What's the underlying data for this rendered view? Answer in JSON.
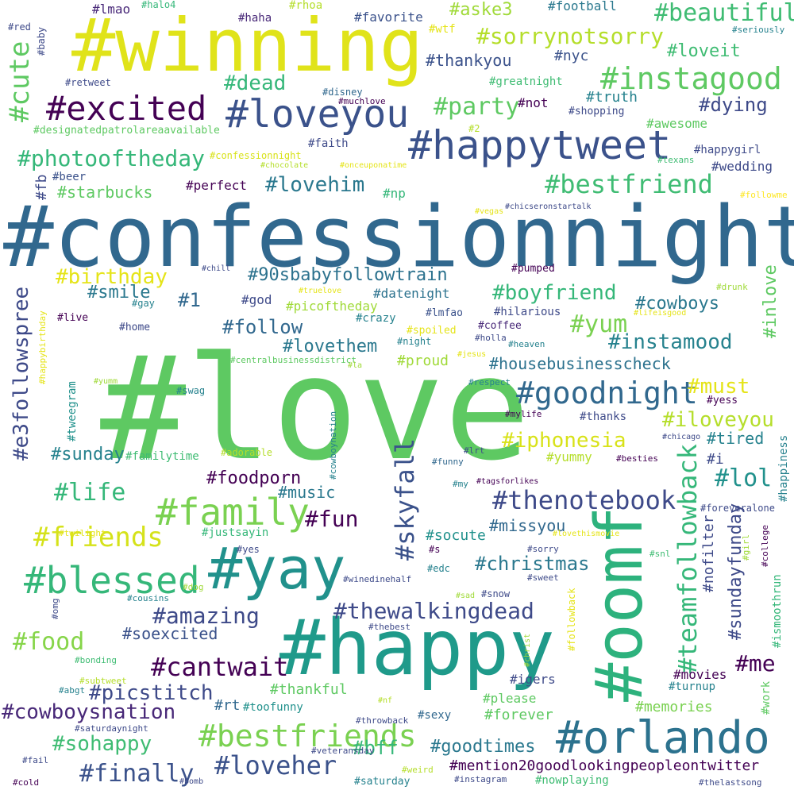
{
  "words": [
    {
      "text": "#confessionnight",
      "color": "#31688e"
    },
    {
      "text": "#love",
      "color": "#5ec962"
    },
    {
      "text": "#winning",
      "color": "#e0e31a"
    },
    {
      "text": "#happy",
      "color": "#1f9a8a"
    },
    {
      "text": "#oomf",
      "color": "#2db27d"
    },
    {
      "text": "#yay",
      "color": "#21918c"
    },
    {
      "text": "#happytweet",
      "color": "#3b528b"
    },
    {
      "text": "#loveyou",
      "color": "#3b528b"
    },
    {
      "text": "#orlando",
      "color": "#2c728e"
    },
    {
      "text": "#excited",
      "color": "#440154"
    },
    {
      "text": "#family",
      "color": "#7ad151"
    },
    {
      "text": "#blessed",
      "color": "#35b779"
    },
    {
      "text": "#instagood",
      "color": "#5ec962"
    },
    {
      "text": "#bestfriends",
      "color": "#7ad151"
    },
    {
      "text": "#goodnight",
      "color": "#31688e"
    },
    {
      "text": "#thenotebook",
      "color": "#3e4a89"
    },
    {
      "text": "#skyfall",
      "color": "#3b528b"
    },
    {
      "text": "#teamfollowback",
      "color": "#35b779"
    },
    {
      "text": "#beautiful",
      "color": "#3fbc73"
    },
    {
      "text": "#bestfriend",
      "color": "#3fbc73"
    },
    {
      "text": "#cute",
      "color": "#5ec962"
    },
    {
      "text": "#thewalkingdead",
      "color": "#3e4a89"
    },
    {
      "text": "#e3followspree",
      "color": "#3e4a89"
    },
    {
      "text": "#loveher",
      "color": "#3b528b"
    },
    {
      "text": "#friends",
      "color": "#d5e21a"
    },
    {
      "text": "#cantwait",
      "color": "#440154"
    },
    {
      "text": "#sorrynotsorry",
      "color": "#b5de2b"
    },
    {
      "text": "#photooftheday",
      "color": "#35b779"
    },
    {
      "text": "#party",
      "color": "#5ec962"
    },
    {
      "text": "#cowboysnation",
      "color": "#482878"
    },
    {
      "text": "#amazing",
      "color": "#3e4a89"
    },
    {
      "text": "#finally",
      "color": "#3b528b"
    },
    {
      "text": "#food",
      "color": "#86d549"
    },
    {
      "text": "#life",
      "color": "#35b779"
    },
    {
      "text": "#instamood",
      "color": "#26828e"
    },
    {
      "text": "#lol",
      "color": "#21918c"
    },
    {
      "text": "#boyfriend",
      "color": "#35b779"
    },
    {
      "text": "#birthday",
      "color": "#e5e419"
    },
    {
      "text": "#lovehim",
      "color": "#2a788e"
    },
    {
      "text": "#iphonesia",
      "color": "#d8e219"
    },
    {
      "text": "#iloveyou",
      "color": "#b5de2b"
    },
    {
      "text": "#90sbabyfollowtrain",
      "color": "#2c728e"
    },
    {
      "text": "#dead",
      "color": "#35b779"
    },
    {
      "text": "#christmas",
      "color": "#2a788e"
    },
    {
      "text": "#sundayfunday",
      "color": "#3e4a89"
    },
    {
      "text": "#picstitch",
      "color": "#3e4a89"
    },
    {
      "text": "#fun",
      "color": "#440154"
    },
    {
      "text": "#yum",
      "color": "#7ad151"
    },
    {
      "text": "#goodtimes",
      "color": "#2a788e"
    },
    {
      "text": "#sohappy",
      "color": "#3fbc73"
    },
    {
      "text": "#mention20goodlookingpeopleontwitter",
      "color": "#440154"
    },
    {
      "text": "#housebusinesscheck",
      "color": "#2c728e"
    },
    {
      "text": "#must",
      "color": "#e5e419"
    },
    {
      "text": "#follow",
      "color": "#31688e"
    },
    {
      "text": "#lovethem",
      "color": "#2a788e"
    },
    {
      "text": "#starbucks",
      "color": "#5ec962"
    },
    {
      "text": "#dying",
      "color": "#3e4a89"
    },
    {
      "text": "#soexcited",
      "color": "#3b528b"
    },
    {
      "text": "#bff",
      "color": "#35b779"
    },
    {
      "text": "#me",
      "color": "#440154"
    },
    {
      "text": "#inlove",
      "color": "#5ec962"
    },
    {
      "text": "#cowboys",
      "color": "#2a788e"
    },
    {
      "text": "#foodporn",
      "color": "#440154"
    },
    {
      "text": "#missyou",
      "color": "#31688e"
    },
    {
      "text": "#music",
      "color": "#2a788e"
    },
    {
      "text": "#sunday",
      "color": "#26828e"
    },
    {
      "text": "#smile",
      "color": "#2a788e"
    },
    {
      "text": "#aske3",
      "color": "#a0da39"
    },
    {
      "text": "#loveit",
      "color": "#3fbc73"
    },
    {
      "text": "#thankyou",
      "color": "#3b528b"
    },
    {
      "text": "#socute",
      "color": "#21918c"
    },
    {
      "text": "#forever",
      "color": "#5ec962"
    },
    {
      "text": "#tired",
      "color": "#26828e"
    },
    {
      "text": "#thankful",
      "color": "#5ec962"
    },
    {
      "text": "#1",
      "color": "#31688e"
    },
    {
      "text": "#memories",
      "color": "#7ad151"
    },
    {
      "text": "#nyc",
      "color": "#3b528b"
    },
    {
      "text": "#datenight",
      "color": "#2c728e"
    },
    {
      "text": "#proud",
      "color": "#a0da39"
    },
    {
      "text": "#truth",
      "color": "#26828e"
    },
    {
      "text": "#yummy",
      "color": "#b5de2b"
    },
    {
      "text": "#rt",
      "color": "#31688e"
    },
    {
      "text": "#fb",
      "color": "#3e4a89"
    },
    {
      "text": "#football",
      "color": "#2a788e"
    },
    {
      "text": "#nofilter",
      "color": "#3e4a89"
    },
    {
      "text": "#favorite",
      "color": "#3b528b"
    },
    {
      "text": "#perfect",
      "color": "#440154"
    },
    {
      "text": "#wedding",
      "color": "#3e4a89"
    },
    {
      "text": "#lmao",
      "color": "#482878"
    },
    {
      "text": "#movies",
      "color": "#440154"
    },
    {
      "text": "#igers",
      "color": "#3e4a89"
    },
    {
      "text": "#not",
      "color": "#440154"
    },
    {
      "text": "#god",
      "color": "#3e4a89"
    },
    {
      "text": "#justsayin",
      "color": "#35b779"
    },
    {
      "text": "#np",
      "color": "#35b779"
    },
    {
      "text": "#awesome",
      "color": "#5ec962"
    },
    {
      "text": "#beer",
      "color": "#3b528b"
    },
    {
      "text": "#tweegram",
      "color": "#21918c"
    },
    {
      "text": "#happiness",
      "color": "#26828e"
    },
    {
      "text": "#picoftheday",
      "color": "#a0da39"
    },
    {
      "text": "#familytime",
      "color": "#3fbc73"
    },
    {
      "text": "#please",
      "color": "#5ec962"
    },
    {
      "text": "#sexy",
      "color": "#31688e"
    },
    {
      "text": "#turnup",
      "color": "#26828e"
    },
    {
      "text": "#work",
      "color": "#5ec962"
    },
    {
      "text": "#ismoothrun",
      "color": "#35b779"
    },
    {
      "text": "#toofunny",
      "color": "#21918c"
    },
    {
      "text": "#pumped",
      "color": "#440154"
    },
    {
      "text": "#hilarious",
      "color": "#3e4a89"
    },
    {
      "text": "#i",
      "color": "#3e4a89"
    },
    {
      "text": "#greatnight",
      "color": "#3fbc73"
    },
    {
      "text": "#happygirl",
      "color": "#3e4a89"
    },
    {
      "text": "#coffee",
      "color": "#482878"
    },
    {
      "text": "#lmfao",
      "color": "#3b528b"
    },
    {
      "text": "#crazy",
      "color": "#26828e"
    },
    {
      "text": "#thanks",
      "color": "#3e4a89"
    },
    {
      "text": "#wtf",
      "color": "#e5e419"
    },
    {
      "text": "#haha",
      "color": "#482878"
    },
    {
      "text": "#rhoa",
      "color": "#b5de2b"
    },
    {
      "text": "#halo4",
      "color": "#35b779"
    },
    {
      "text": "#baby",
      "color": "#3e4a89"
    },
    {
      "text": "#red",
      "color": "#3e4a89"
    },
    {
      "text": "#seriously",
      "color": "#26828e"
    },
    {
      "text": "#retweet",
      "color": "#3e4a89"
    },
    {
      "text": "#disney",
      "color": "#31688e"
    },
    {
      "text": "#muchlove",
      "color": "#440154"
    },
    {
      "text": "#shopping",
      "color": "#3e4a89"
    },
    {
      "text": "#designatedpatrolareaavailable",
      "color": "#5ec962"
    },
    {
      "text": "#2",
      "color": "#b5de2b"
    },
    {
      "text": "#faith",
      "color": "#3e4a89"
    },
    {
      "text": "#confessionnight",
      "color": "#d8e219"
    },
    {
      "text": "#chocolate",
      "color": "#b5de2b"
    },
    {
      "text": "#onceuponatime",
      "color": "#e5e419"
    },
    {
      "text": "#texans",
      "color": "#3fbc73"
    },
    {
      "text": "#followme",
      "color": "#fde725"
    },
    {
      "text": "#chicseronstartalk",
      "color": "#3e4a89"
    },
    {
      "text": "#vegas",
      "color": "#e5e419"
    },
    {
      "text": "#chill",
      "color": "#3e4a89"
    },
    {
      "text": "#truelove",
      "color": "#e5e419"
    },
    {
      "text": "#drunk",
      "color": "#a0da39"
    },
    {
      "text": "#gay",
      "color": "#26828e"
    },
    {
      "text": "#lifeisgood",
      "color": "#e5e419"
    },
    {
      "text": "#live",
      "color": "#440154"
    },
    {
      "text": "#happybirthday",
      "color": "#e5e419"
    },
    {
      "text": "#home",
      "color": "#3e4a89"
    },
    {
      "text": "#spoiled",
      "color": "#e5e419"
    },
    {
      "text": "#holla",
      "color": "#3e4a89"
    },
    {
      "text": "#night",
      "color": "#26828e"
    },
    {
      "text": "#heaven",
      "color": "#26828e"
    },
    {
      "text": "#jesus",
      "color": "#e5e419"
    },
    {
      "text": "#centralbusinessdistrict",
      "color": "#5ec962"
    },
    {
      "text": "#la",
      "color": "#a0da39"
    },
    {
      "text": "#respect",
      "color": "#26828e"
    },
    {
      "text": "#swag",
      "color": "#26828e"
    },
    {
      "text": "#yess",
      "color": "#440154"
    },
    {
      "text": "#mylife",
      "color": "#440154"
    },
    {
      "text": "#cowboynation",
      "color": "#26828e"
    },
    {
      "text": "#adorable",
      "color": "#b5de2b"
    },
    {
      "text": "#lrt",
      "color": "#3e4a89"
    },
    {
      "text": "#chicago",
      "color": "#3e4a89"
    },
    {
      "text": "#besties",
      "color": "#440154"
    },
    {
      "text": "#funny",
      "color": "#31688e"
    },
    {
      "text": "#tagsforlikes",
      "color": "#440154"
    },
    {
      "text": "#my",
      "color": "#26828e"
    },
    {
      "text": "#foreveralone",
      "color": "#3e4a89"
    },
    {
      "text": "#twilight",
      "color": "#e5e419"
    },
    {
      "text": "#lovethismovie",
      "color": "#e5e419"
    },
    {
      "text": "#yes",
      "color": "#3e4a89"
    },
    {
      "text": "#s",
      "color": "#440154"
    },
    {
      "text": "#sorry",
      "color": "#3e4a89"
    },
    {
      "text": "#snl",
      "color": "#3fbc73"
    },
    {
      "text": "#girl",
      "color": "#a0da39"
    },
    {
      "text": "#college",
      "color": "#440154"
    },
    {
      "text": "#winedinehalf",
      "color": "#3e4a89"
    },
    {
      "text": "#sweet",
      "color": "#3e4a89"
    },
    {
      "text": "#edc",
      "color": "#26828e"
    },
    {
      "text": "#dog",
      "color": "#a0da39"
    },
    {
      "text": "#cousins",
      "color": "#26828e"
    },
    {
      "text": "#sad",
      "color": "#a0da39"
    },
    {
      "text": "#snow",
      "color": "#3e4a89"
    },
    {
      "text": "#omg",
      "color": "#3e4a89"
    },
    {
      "text": "#thebest",
      "color": "#3e4a89"
    },
    {
      "text": "#followback",
      "color": "#e5e419"
    },
    {
      "text": "#christ",
      "color": "#a0da39"
    },
    {
      "text": "#bonding",
      "color": "#3fbc73"
    },
    {
      "text": "#subtweet",
      "color": "#b5de2b"
    },
    {
      "text": "#abgt",
      "color": "#26828e"
    },
    {
      "text": "#nf",
      "color": "#b5de2b"
    },
    {
      "text": "#saturdaynight",
      "color": "#3e4a89"
    },
    {
      "text": "#throwback",
      "color": "#3e4a89"
    },
    {
      "text": "#veteransday",
      "color": "#3e4a89"
    },
    {
      "text": "#fail",
      "color": "#3e4a89"
    },
    {
      "text": "#weird",
      "color": "#b5de2b"
    },
    {
      "text": "#cold",
      "color": "#440154"
    },
    {
      "text": "#bomb",
      "color": "#3e4a89"
    },
    {
      "text": "#saturday",
      "color": "#26828e"
    },
    {
      "text": "#instagram",
      "color": "#3e4a89"
    },
    {
      "text": "#nowplaying",
      "color": "#3fbc73"
    },
    {
      "text": "#thelastsong",
      "color": "#3e4a89"
    },
    {
      "text": "#yumm",
      "color": "#a0da39"
    }
  ]
}
